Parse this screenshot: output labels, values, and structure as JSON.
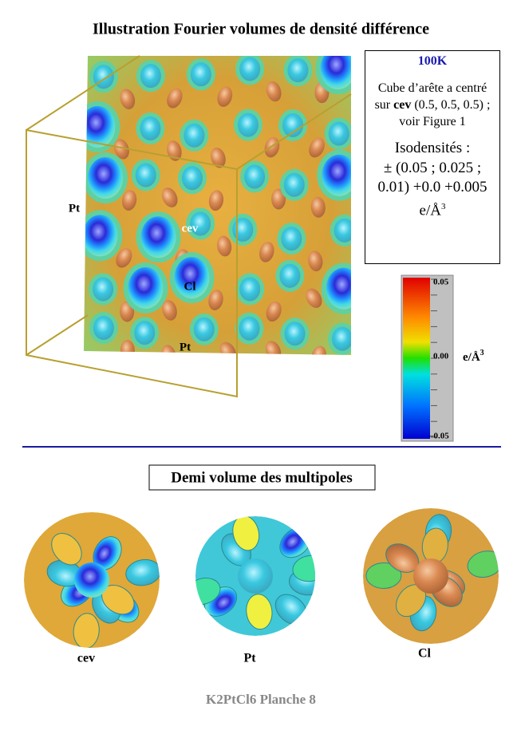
{
  "header": {
    "title": "Illustration Fourier volumes de densité différence"
  },
  "info_box": {
    "temperature": "100K",
    "description": [
      "Cube d’arête a centré sur ",
      "cev",
      " (0.5, 0.5, 0.5) ; voir Figure 1"
    ],
    "isodensity_title": "Isodensités :",
    "isodensity_values": "± (0.05 ; 0.025 ; 0.01) +0.0 +0.005 e/Å",
    "isodensity_exponent": "3"
  },
  "cube_labels": [
    "Pt",
    "cev",
    "Cl",
    "Pt"
  ],
  "color_scale": {
    "labels": [
      "0.05",
      "0.00",
      "–0.05"
    ],
    "unit": "e/Å",
    "unit_exponent": "3"
  },
  "section": {
    "title": "Demi volume des multipoles",
    "labels": [
      "cev",
      "Pt",
      "Cl"
    ]
  },
  "footer": "K2PtCl6 Planche 8"
}
